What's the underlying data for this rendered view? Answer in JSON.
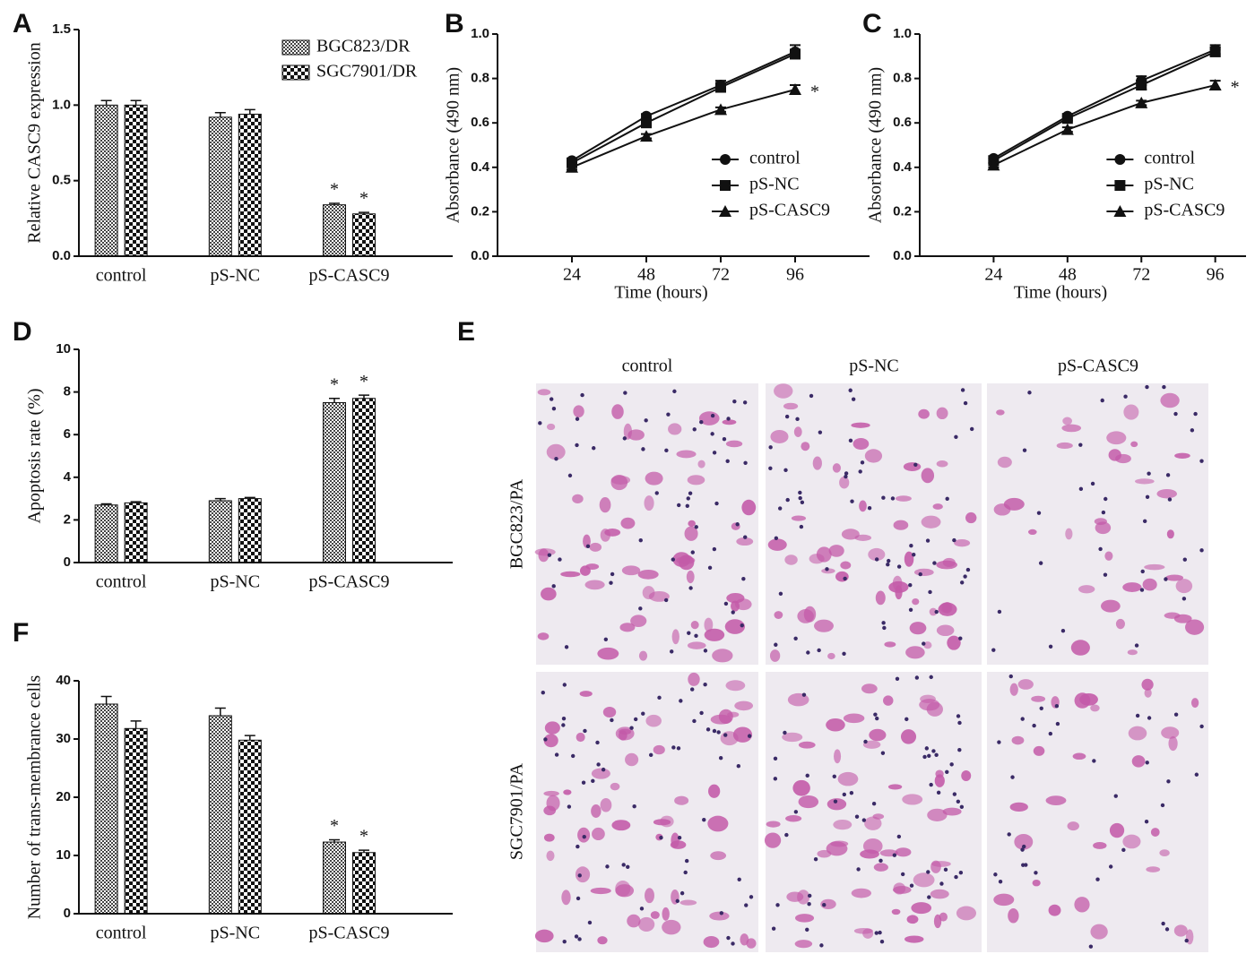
{
  "chart_data": [
    {
      "type": "bar",
      "panel_label": "A",
      "ylabel": "Relative CASC9 expression",
      "categories": [
        "control",
        "pS-NC",
        "pS-CASC9"
      ],
      "ylim": [
        0,
        1.5
      ],
      "yticks": [
        {
          "value": 0,
          "label": "0.0"
        },
        {
          "value": 0.5,
          "label": "0.5"
        },
        {
          "value": 1,
          "label": "1.0"
        },
        {
          "value": 1.5,
          "label": "1.5"
        }
      ],
      "legend": "upper right",
      "series": [
        {
          "name": "BGC823/DR",
          "color": "#444444",
          "pattern": "fine",
          "values": [
            1.0,
            0.92,
            0.34
          ],
          "errors": [
            0.03,
            0.03,
            0.01
          ],
          "annotations": [
            null,
            null,
            "*"
          ]
        },
        {
          "name": "SGC7901/DR",
          "color": "#111111",
          "pattern": "coarse",
          "values": [
            1.0,
            0.94,
            0.28
          ],
          "errors": [
            0.03,
            0.03,
            0.01
          ],
          "annotations": [
            null,
            null,
            "*"
          ]
        }
      ]
    },
    {
      "type": "line",
      "panel_label": "B",
      "ylabel": "Absorbance (490 nm)",
      "xlabel": "Time (hours)",
      "xlim": [
        0,
        120
      ],
      "xticks": [
        24,
        48,
        72,
        96
      ],
      "ylim": [
        0,
        1
      ],
      "yticks": [
        {
          "value": 0,
          "label": "0.0"
        },
        {
          "value": 0.2,
          "label": "0.2"
        },
        {
          "value": 0.4,
          "label": "0.4"
        },
        {
          "value": 0.6,
          "label": "0.6"
        },
        {
          "value": 0.8,
          "label": "0.8"
        },
        {
          "value": 1,
          "label": "1.0"
        }
      ],
      "legend": "lower right",
      "x": [
        24,
        48,
        72,
        96
      ],
      "series": [
        {
          "name": "control",
          "color": "#111111",
          "marker": "circle",
          "values": [
            0.43,
            0.63,
            0.77,
            0.92
          ],
          "errors": [
            0.01,
            0.01,
            0.02,
            0.03
          ],
          "annotations": [
            null,
            null,
            null,
            null
          ]
        },
        {
          "name": "pS-NC",
          "color": "#111111",
          "marker": "square",
          "values": [
            0.42,
            0.6,
            0.76,
            0.91
          ],
          "errors": [
            0.01,
            0.01,
            0.02,
            0.02
          ],
          "annotations": [
            null,
            null,
            null,
            null
          ]
        },
        {
          "name": "pS-CASC9",
          "color": "#111111",
          "marker": "triangle",
          "values": [
            0.4,
            0.54,
            0.66,
            0.75
          ],
          "errors": [
            0.01,
            0.01,
            0.01,
            0.02
          ],
          "annotations": [
            null,
            null,
            null,
            "*"
          ]
        }
      ]
    },
    {
      "type": "line",
      "panel_label": "C",
      "ylabel": "Absorbance (490 nm)",
      "xlabel": "Time (hours)",
      "xlim": [
        0,
        106
      ],
      "xticks": [
        24,
        48,
        72,
        96
      ],
      "ylim": [
        0,
        1
      ],
      "yticks": [
        {
          "value": 0,
          "label": "0.0"
        },
        {
          "value": 0.2,
          "label": "0.2"
        },
        {
          "value": 0.4,
          "label": "0.4"
        },
        {
          "value": 0.6,
          "label": "0.6"
        },
        {
          "value": 0.8,
          "label": "0.8"
        },
        {
          "value": 1,
          "label": "1.0"
        }
      ],
      "legend": "lower right",
      "x": [
        24,
        48,
        72,
        96
      ],
      "series": [
        {
          "name": "control",
          "color": "#111111",
          "marker": "circle",
          "values": [
            0.44,
            0.63,
            0.79,
            0.93
          ],
          "errors": [
            0.01,
            0.01,
            0.02,
            0.02
          ],
          "annotations": [
            null,
            null,
            null,
            null
          ]
        },
        {
          "name": "pS-NC",
          "color": "#111111",
          "marker": "square",
          "values": [
            0.43,
            0.62,
            0.77,
            0.92
          ],
          "errors": [
            0.01,
            0.01,
            0.02,
            0.02
          ],
          "annotations": [
            null,
            null,
            null,
            null
          ]
        },
        {
          "name": "pS-CASC9",
          "color": "#111111",
          "marker": "triangle",
          "values": [
            0.41,
            0.57,
            0.69,
            0.77
          ],
          "errors": [
            0.01,
            0.01,
            0.01,
            0.02
          ],
          "annotations": [
            null,
            null,
            null,
            "*"
          ]
        }
      ]
    },
    {
      "type": "bar",
      "panel_label": "D",
      "ylabel": "Apoptosis rate (%)",
      "categories": [
        "control",
        "pS-NC",
        "pS-CASC9"
      ],
      "ylim": [
        0,
        10
      ],
      "yticks": [
        0,
        2,
        4,
        6,
        8,
        10
      ],
      "series": [
        {
          "color": "#444444",
          "pattern": "fine",
          "values": [
            2.7,
            2.9,
            7.5
          ],
          "errors": [
            0.05,
            0.1,
            0.2
          ],
          "annotations": [
            null,
            null,
            "*"
          ]
        },
        {
          "color": "#111111",
          "pattern": "coarse",
          "values": [
            2.8,
            3.0,
            7.7
          ],
          "errors": [
            0.05,
            0.05,
            0.15
          ],
          "annotations": [
            null,
            null,
            "*"
          ]
        }
      ]
    },
    {
      "type": "bar",
      "panel_label": "F",
      "ylabel": "Number of trans-membrance cells",
      "categories": [
        "control",
        "pS-NC",
        "pS-CASC9"
      ],
      "ylim": [
        0,
        40
      ],
      "yticks": [
        0,
        10,
        20,
        30,
        40
      ],
      "series": [
        {
          "color": "#444444",
          "pattern": "fine",
          "values": [
            36,
            34,
            12.3
          ],
          "errors": [
            1.3,
            1.3,
            0.4
          ],
          "annotations": [
            null,
            null,
            "*"
          ]
        },
        {
          "color": "#111111",
          "pattern": "coarse",
          "values": [
            31.8,
            29.8,
            10.5
          ],
          "errors": [
            1.3,
            0.8,
            0.4
          ],
          "annotations": [
            null,
            null,
            "*"
          ]
        }
      ]
    }
  ],
  "micrograph": {
    "panel_label": "E",
    "columns": [
      "control",
      "pS-NC",
      "pS-CASC9"
    ],
    "rows": [
      "BGC823/PA",
      "SGC7901/PA"
    ]
  }
}
